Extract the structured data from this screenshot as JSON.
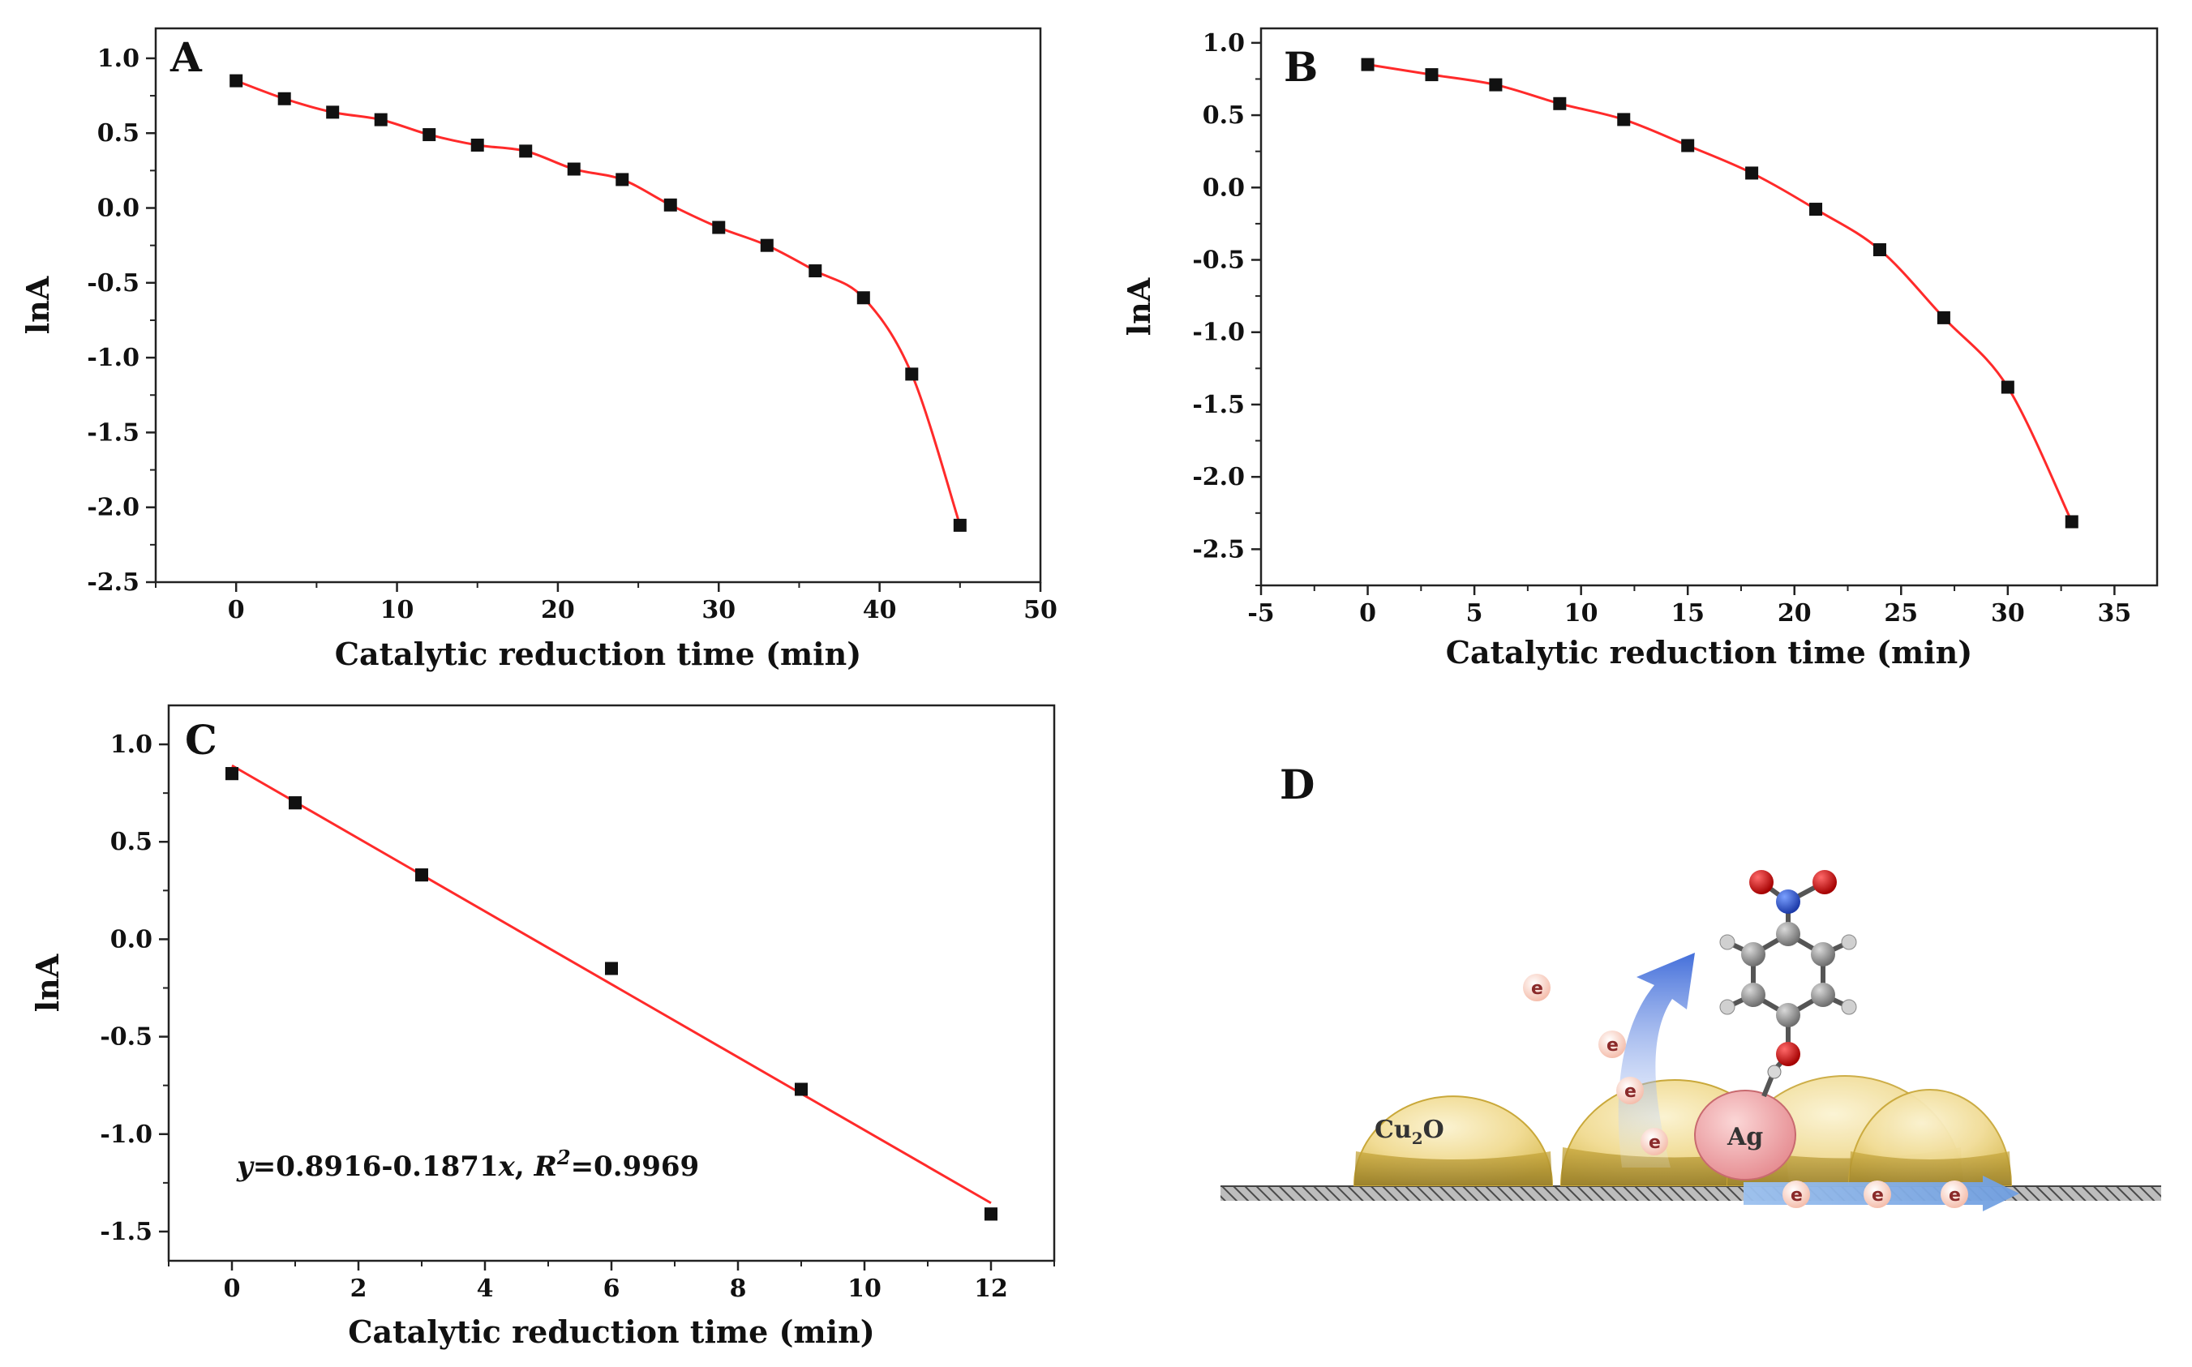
{
  "colors": {
    "line": "#ff2a2a",
    "marker": "#111111",
    "axis": "#222222"
  },
  "chart_data": [
    {
      "panel": "A",
      "type": "line",
      "xlabel": "Catalytic reduction time (min)",
      "ylabel": "lnA",
      "xlim": [
        -5,
        50
      ],
      "ylim": [
        -2.5,
        1.2
      ],
      "xticks": [
        0,
        10,
        20,
        30,
        40,
        50
      ],
      "yticks": [
        1.0,
        0.5,
        0.0,
        -0.5,
        -1.0,
        -1.5,
        -2.0,
        -2.5
      ],
      "ytick_labels": [
        "1.0",
        "0.5",
        "0.0",
        "-0.5",
        "-1.0",
        "-1.5",
        "-2.0",
        "-2.5"
      ],
      "curve": "smooth",
      "series": [
        {
          "name": "lnA",
          "x": [
            0,
            3,
            6,
            9,
            12,
            15,
            18,
            21,
            24,
            27,
            30,
            33,
            36,
            39,
            42,
            45
          ],
          "y": [
            0.85,
            0.73,
            0.64,
            0.59,
            0.49,
            0.42,
            0.38,
            0.26,
            0.19,
            0.02,
            -0.13,
            -0.25,
            -0.42,
            -0.6,
            -1.11,
            -2.12
          ]
        }
      ]
    },
    {
      "panel": "B",
      "type": "line",
      "xlabel": "Catalytic reduction time (min)",
      "ylabel": "lnA",
      "xlim": [
        -5,
        37
      ],
      "ylim": [
        -2.75,
        1.1
      ],
      "xticks": [
        -5,
        0,
        5,
        10,
        15,
        20,
        25,
        30,
        35
      ],
      "yticks": [
        1.0,
        0.5,
        0.0,
        -0.5,
        -1.0,
        -1.5,
        -2.0,
        -2.5
      ],
      "ytick_labels": [
        "1.0",
        "0.5",
        "0.0",
        "-0.5",
        "-1.0",
        "-1.5",
        "-2.0",
        "-2.5"
      ],
      "curve": "smooth",
      "series": [
        {
          "name": "lnA",
          "x": [
            0,
            3,
            6,
            9,
            12,
            15,
            18,
            21,
            24,
            27,
            30,
            33
          ],
          "y": [
            0.85,
            0.78,
            0.71,
            0.58,
            0.47,
            0.29,
            0.1,
            -0.15,
            -0.43,
            -0.9,
            -1.38,
            -2.31
          ]
        }
      ]
    },
    {
      "panel": "C",
      "type": "scatter",
      "xlabel": "Catalytic reduction time (min)",
      "ylabel": "lnA",
      "xlim": [
        -1,
        13
      ],
      "ylim": [
        -1.65,
        1.2
      ],
      "xticks": [
        0,
        2,
        4,
        6,
        8,
        10,
        12
      ],
      "yticks": [
        1.0,
        0.5,
        0.0,
        -0.5,
        -1.0,
        -1.5
      ],
      "ytick_labels": [
        "1.0",
        "0.5",
        "0.0",
        "-0.5",
        "-1.0",
        "-1.5"
      ],
      "series": [
        {
          "name": "lnA",
          "x": [
            0,
            1,
            3,
            6,
            9,
            12
          ],
          "y": [
            0.85,
            0.7,
            0.33,
            -0.15,
            -0.77,
            -1.41
          ]
        }
      ],
      "fit": {
        "intercept": 0.8916,
        "slope": -0.1871,
        "x_range": [
          0,
          12
        ]
      },
      "equation": {
        "lhs": "y",
        "body": "=0.8916-0.1871",
        "var": "x",
        "r_label": "R",
        "r_sup": "2",
        "r_value": "=0.9969"
      }
    }
  ],
  "schematic": {
    "panel": "D",
    "cu2o_label": "Cu",
    "cu2o_sub": "2",
    "cu2o_suffix": "O",
    "ag_label": "Ag",
    "electron_label": "e"
  }
}
